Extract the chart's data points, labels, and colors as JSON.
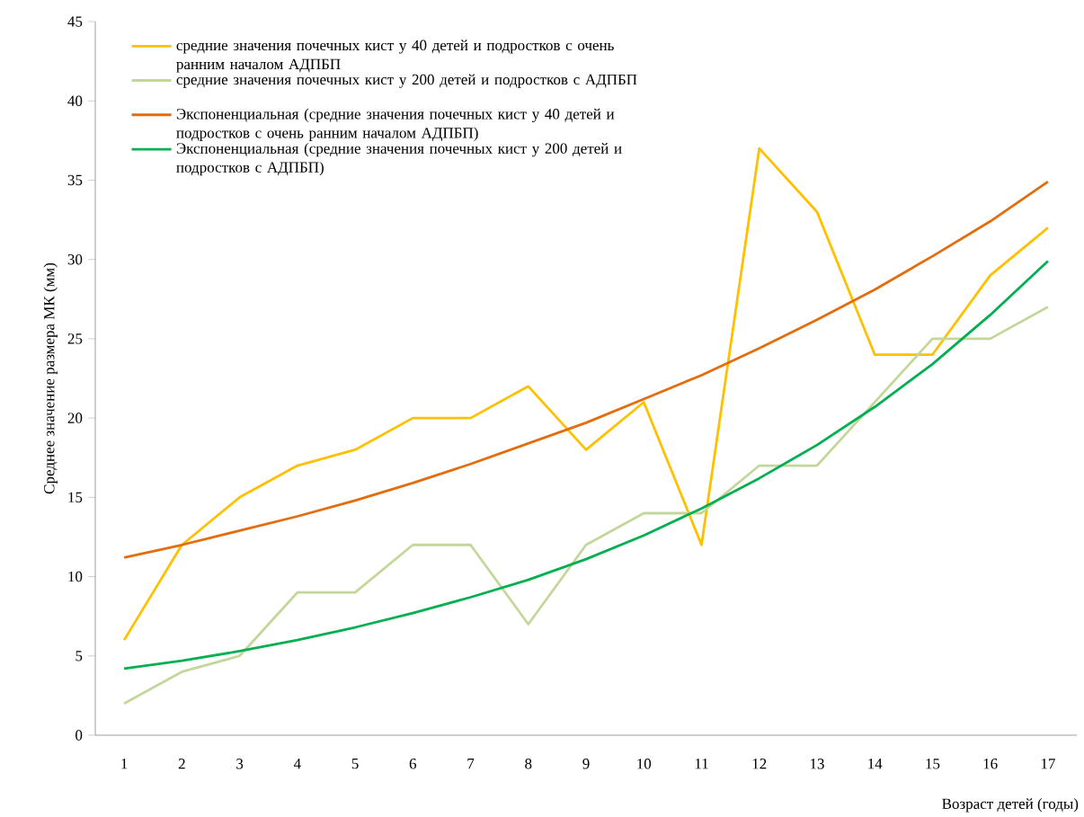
{
  "chart_data": {
    "type": "line",
    "xlabel": "Возраст детей (годы)",
    "ylabel": "Среднее значение размера МК (мм)",
    "categories": [
      "1",
      "2",
      "3",
      "4",
      "5",
      "6",
      "7",
      "8",
      "9",
      "10",
      "11",
      "12",
      "13",
      "14",
      "15",
      "16",
      "17"
    ],
    "series": [
      {
        "name": "средние значения почечных кист у 40 детей и подростков с очень ранним началом АДПБП",
        "color": "#ffc000",
        "values": [
          6,
          12,
          15,
          17,
          18,
          20,
          20,
          22,
          18,
          21,
          12,
          37,
          33,
          24,
          24,
          29,
          32
        ]
      },
      {
        "name": "средние значения почечных кист у 200 детей и подростков с АДПБП",
        "color": "#c4d79b",
        "values": [
          2,
          4,
          5,
          9,
          9,
          12,
          12,
          7,
          12,
          14,
          14,
          17,
          17,
          21,
          25,
          25,
          27
        ]
      },
      {
        "name": "Экспоненциальная (средние значения почечных кист у 40 детей и подростков с очень ранним началом АДПБП)",
        "color": "#e46c0a",
        "values": [
          11.2,
          12,
          12.9,
          13.8,
          14.8,
          15.9,
          17.1,
          18.4,
          19.7,
          21.2,
          22.7,
          24.4,
          26.2,
          28.1,
          30.2,
          32.4,
          34.9
        ]
      },
      {
        "name": "Экспоненциальная (средние значения почечных кист у 200 детей и подростков с АДПБП)",
        "color": "#00b050",
        "values": [
          4.2,
          4.7,
          5.3,
          6.0,
          6.8,
          7.7,
          8.7,
          9.8,
          11.1,
          12.6,
          14.3,
          16.2,
          18.3,
          20.7,
          23.4,
          26.5,
          29.9
        ]
      }
    ],
    "ylim": [
      0,
      45
    ],
    "yticks": [
      0,
      5,
      10,
      15,
      20,
      25,
      30,
      35,
      40,
      45
    ],
    "grid": false,
    "legend": "top left",
    "marker": "none",
    "line_style": "solid"
  }
}
